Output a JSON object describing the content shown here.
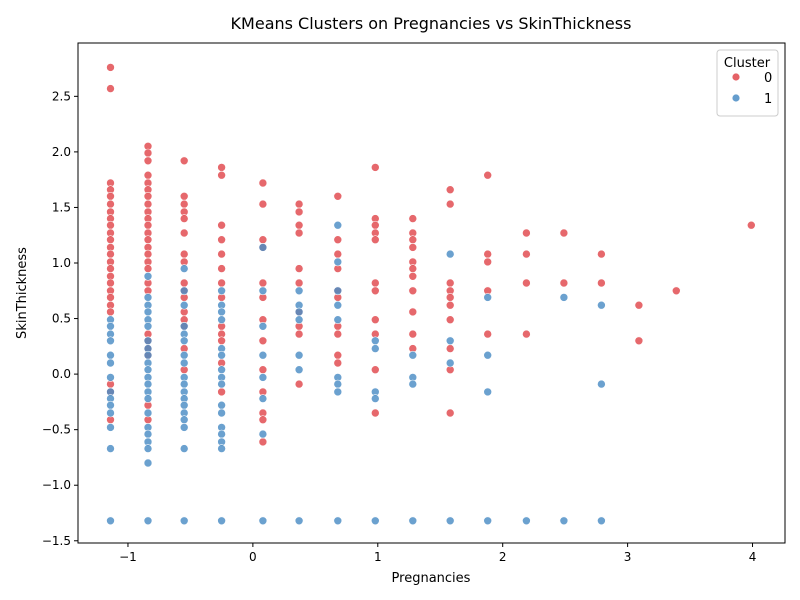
{
  "chart_data": {
    "type": "scatter",
    "title": "KMeans Clusters on Pregnancies vs SkinThickness",
    "xlabel": "Pregnancies",
    "ylabel": "SkinThickness",
    "xlim": [
      -1.4,
      4.26
    ],
    "ylim": [
      -1.52,
      2.98
    ],
    "xticks": [
      -1,
      0,
      1,
      2,
      3,
      4
    ],
    "yticks": [
      -1.5,
      -1.0,
      -0.5,
      0.0,
      0.5,
      1.0,
      1.5,
      2.0,
      2.5
    ],
    "xtick_labels": [
      "−1",
      "0",
      "1",
      "2",
      "3",
      "4"
    ],
    "ytick_labels": [
      "−1.5",
      "−1.0",
      "−0.5",
      "0.0",
      "0.5",
      "1.0",
      "1.5",
      "2.0",
      "2.5"
    ],
    "legend": {
      "title": "Cluster",
      "placement": "top-right",
      "entries": [
        "0",
        "1"
      ]
    },
    "series": [
      {
        "name": "0",
        "color": "#e0474c",
        "points": [
          [
            -1.14,
            2.76
          ],
          [
            -1.14,
            2.57
          ],
          [
            -1.14,
            1.72
          ],
          [
            -1.14,
            1.66
          ],
          [
            -1.14,
            1.6
          ],
          [
            -1.14,
            1.53
          ],
          [
            -1.14,
            1.46
          ],
          [
            -1.14,
            1.4
          ],
          [
            -1.14,
            1.34
          ],
          [
            -1.14,
            1.27
          ],
          [
            -1.14,
            1.21
          ],
          [
            -1.14,
            1.14
          ],
          [
            -1.14,
            1.08
          ],
          [
            -1.14,
            1.01
          ],
          [
            -1.14,
            0.95
          ],
          [
            -1.14,
            0.88
          ],
          [
            -1.14,
            0.82
          ],
          [
            -1.14,
            0.75
          ],
          [
            -1.14,
            0.69
          ],
          [
            -1.14,
            0.62
          ],
          [
            -1.14,
            0.56
          ],
          [
            -1.14,
            -0.09
          ],
          [
            -1.14,
            -0.16
          ],
          [
            -1.14,
            -0.41
          ],
          [
            -0.84,
            2.05
          ],
          [
            -0.84,
            1.99
          ],
          [
            -0.84,
            1.92
          ],
          [
            -0.84,
            1.79
          ],
          [
            -0.84,
            1.72
          ],
          [
            -0.84,
            1.66
          ],
          [
            -0.84,
            1.6
          ],
          [
            -0.84,
            1.53
          ],
          [
            -0.84,
            1.46
          ],
          [
            -0.84,
            1.4
          ],
          [
            -0.84,
            1.34
          ],
          [
            -0.84,
            1.27
          ],
          [
            -0.84,
            1.21
          ],
          [
            -0.84,
            1.14
          ],
          [
            -0.84,
            1.08
          ],
          [
            -0.84,
            1.01
          ],
          [
            -0.84,
            0.95
          ],
          [
            -0.84,
            0.82
          ],
          [
            -0.84,
            0.75
          ],
          [
            -0.84,
            0.36
          ],
          [
            -0.84,
            0.3
          ],
          [
            -0.84,
            0.23
          ],
          [
            -0.84,
            0.17
          ],
          [
            -0.84,
            -0.28
          ],
          [
            -0.84,
            -0.41
          ],
          [
            -0.55,
            1.92
          ],
          [
            -0.55,
            1.6
          ],
          [
            -0.55,
            1.53
          ],
          [
            -0.55,
            1.46
          ],
          [
            -0.55,
            1.4
          ],
          [
            -0.55,
            1.27
          ],
          [
            -0.55,
            1.08
          ],
          [
            -0.55,
            1.01
          ],
          [
            -0.55,
            0.82
          ],
          [
            -0.55,
            0.75
          ],
          [
            -0.55,
            0.69
          ],
          [
            -0.55,
            0.56
          ],
          [
            -0.55,
            0.49
          ],
          [
            -0.55,
            0.43
          ],
          [
            -0.55,
            0.23
          ],
          [
            -0.55,
            0.04
          ],
          [
            -0.25,
            1.86
          ],
          [
            -0.25,
            1.79
          ],
          [
            -0.25,
            1.34
          ],
          [
            -0.25,
            1.21
          ],
          [
            -0.25,
            1.08
          ],
          [
            -0.25,
            0.95
          ],
          [
            -0.25,
            0.82
          ],
          [
            -0.25,
            0.69
          ],
          [
            -0.25,
            0.43
          ],
          [
            -0.25,
            0.36
          ],
          [
            -0.25,
            0.3
          ],
          [
            -0.25,
            0.1
          ],
          [
            -0.25,
            -0.16
          ],
          [
            0.08,
            1.72
          ],
          [
            0.08,
            1.53
          ],
          [
            0.08,
            1.21
          ],
          [
            0.08,
            1.14
          ],
          [
            0.08,
            0.82
          ],
          [
            0.08,
            0.69
          ],
          [
            0.08,
            0.49
          ],
          [
            0.08,
            0.3
          ],
          [
            0.08,
            0.04
          ],
          [
            0.08,
            -0.16
          ],
          [
            0.08,
            -0.35
          ],
          [
            0.08,
            -0.41
          ],
          [
            0.08,
            -0.61
          ],
          [
            0.37,
            1.53
          ],
          [
            0.37,
            1.46
          ],
          [
            0.37,
            1.34
          ],
          [
            0.37,
            1.27
          ],
          [
            0.37,
            0.95
          ],
          [
            0.37,
            0.82
          ],
          [
            0.37,
            0.56
          ],
          [
            0.37,
            0.43
          ],
          [
            0.37,
            0.36
          ],
          [
            0.37,
            -0.09
          ],
          [
            0.68,
            1.6
          ],
          [
            0.68,
            1.21
          ],
          [
            0.68,
            1.08
          ],
          [
            0.68,
            0.95
          ],
          [
            0.68,
            0.75
          ],
          [
            0.68,
            0.69
          ],
          [
            0.68,
            0.43
          ],
          [
            0.68,
            0.36
          ],
          [
            0.68,
            0.17
          ],
          [
            0.68,
            0.1
          ],
          [
            0.98,
            1.86
          ],
          [
            0.98,
            1.4
          ],
          [
            0.98,
            1.34
          ],
          [
            0.98,
            1.27
          ],
          [
            0.98,
            1.21
          ],
          [
            0.98,
            0.82
          ],
          [
            0.98,
            0.75
          ],
          [
            0.98,
            0.49
          ],
          [
            0.98,
            0.36
          ],
          [
            0.98,
            0.04
          ],
          [
            0.98,
            -0.35
          ],
          [
            1.28,
            1.4
          ],
          [
            1.28,
            1.27
          ],
          [
            1.28,
            1.21
          ],
          [
            1.28,
            1.14
          ],
          [
            1.28,
            1.01
          ],
          [
            1.28,
            0.95
          ],
          [
            1.28,
            0.88
          ],
          [
            1.28,
            0.75
          ],
          [
            1.28,
            0.56
          ],
          [
            1.28,
            0.36
          ],
          [
            1.28,
            0.23
          ],
          [
            1.58,
            1.66
          ],
          [
            1.58,
            1.53
          ],
          [
            1.58,
            0.82
          ],
          [
            1.58,
            0.75
          ],
          [
            1.58,
            0.69
          ],
          [
            1.58,
            0.62
          ],
          [
            1.58,
            0.49
          ],
          [
            1.58,
            0.23
          ],
          [
            1.58,
            0.04
          ],
          [
            1.58,
            -0.35
          ],
          [
            1.88,
            1.79
          ],
          [
            1.88,
            1.08
          ],
          [
            1.88,
            1.01
          ],
          [
            1.88,
            0.75
          ],
          [
            1.88,
            0.36
          ],
          [
            2.19,
            1.27
          ],
          [
            2.19,
            1.08
          ],
          [
            2.19,
            0.82
          ],
          [
            2.19,
            0.36
          ],
          [
            2.49,
            1.27
          ],
          [
            2.49,
            0.82
          ],
          [
            2.79,
            1.08
          ],
          [
            2.79,
            0.82
          ],
          [
            3.09,
            0.62
          ],
          [
            3.09,
            0.3
          ],
          [
            3.39,
            0.75
          ],
          [
            3.99,
            1.34
          ]
        ]
      },
      {
        "name": "1",
        "color": "#4a8cc4",
        "points": [
          [
            -1.14,
            0.49
          ],
          [
            -1.14,
            0.43
          ],
          [
            -1.14,
            0.36
          ],
          [
            -1.14,
            0.3
          ],
          [
            -1.14,
            0.17
          ],
          [
            -1.14,
            0.1
          ],
          [
            -1.14,
            -0.03
          ],
          [
            -1.14,
            -0.16
          ],
          [
            -1.14,
            -0.22
          ],
          [
            -1.14,
            -0.28
          ],
          [
            -1.14,
            -0.35
          ],
          [
            -1.14,
            -0.48
          ],
          [
            -1.14,
            -0.67
          ],
          [
            -1.14,
            -1.32
          ],
          [
            -0.84,
            0.88
          ],
          [
            -0.84,
            0.69
          ],
          [
            -0.84,
            0.62
          ],
          [
            -0.84,
            0.56
          ],
          [
            -0.84,
            0.49
          ],
          [
            -0.84,
            0.43
          ],
          [
            -0.84,
            0.3
          ],
          [
            -0.84,
            0.23
          ],
          [
            -0.84,
            0.17
          ],
          [
            -0.84,
            0.1
          ],
          [
            -0.84,
            0.04
          ],
          [
            -0.84,
            -0.03
          ],
          [
            -0.84,
            -0.09
          ],
          [
            -0.84,
            -0.16
          ],
          [
            -0.84,
            -0.22
          ],
          [
            -0.84,
            -0.35
          ],
          [
            -0.84,
            -0.48
          ],
          [
            -0.84,
            -0.54
          ],
          [
            -0.84,
            -0.61
          ],
          [
            -0.84,
            -0.67
          ],
          [
            -0.84,
            -0.8
          ],
          [
            -0.84,
            -1.32
          ],
          [
            -0.55,
            0.95
          ],
          [
            -0.55,
            0.75
          ],
          [
            -0.55,
            0.62
          ],
          [
            -0.55,
            0.43
          ],
          [
            -0.55,
            0.36
          ],
          [
            -0.55,
            0.3
          ],
          [
            -0.55,
            0.17
          ],
          [
            -0.55,
            0.1
          ],
          [
            -0.55,
            -0.03
          ],
          [
            -0.55,
            -0.09
          ],
          [
            -0.55,
            -0.16
          ],
          [
            -0.55,
            -0.22
          ],
          [
            -0.55,
            -0.28
          ],
          [
            -0.55,
            -0.35
          ],
          [
            -0.55,
            -0.41
          ],
          [
            -0.55,
            -0.48
          ],
          [
            -0.55,
            -0.67
          ],
          [
            -0.55,
            -1.32
          ],
          [
            -0.25,
            0.75
          ],
          [
            -0.25,
            0.62
          ],
          [
            -0.25,
            0.56
          ],
          [
            -0.25,
            0.49
          ],
          [
            -0.25,
            0.23
          ],
          [
            -0.25,
            0.17
          ],
          [
            -0.25,
            0.04
          ],
          [
            -0.25,
            -0.03
          ],
          [
            -0.25,
            -0.09
          ],
          [
            -0.25,
            -0.28
          ],
          [
            -0.25,
            -0.35
          ],
          [
            -0.25,
            -0.48
          ],
          [
            -0.25,
            -0.54
          ],
          [
            -0.25,
            -0.61
          ],
          [
            -0.25,
            -0.67
          ],
          [
            -0.25,
            -1.32
          ],
          [
            0.08,
            1.14
          ],
          [
            0.08,
            0.75
          ],
          [
            0.08,
            0.43
          ],
          [
            0.08,
            0.17
          ],
          [
            0.08,
            -0.03
          ],
          [
            0.08,
            -0.22
          ],
          [
            0.08,
            -0.54
          ],
          [
            0.08,
            -1.32
          ],
          [
            0.37,
            0.75
          ],
          [
            0.37,
            0.62
          ],
          [
            0.37,
            0.56
          ],
          [
            0.37,
            0.49
          ],
          [
            0.37,
            0.17
          ],
          [
            0.37,
            0.04
          ],
          [
            0.37,
            -1.32
          ],
          [
            0.68,
            1.34
          ],
          [
            0.68,
            1.01
          ],
          [
            0.68,
            0.75
          ],
          [
            0.68,
            0.62
          ],
          [
            0.68,
            0.49
          ],
          [
            0.68,
            -0.03
          ],
          [
            0.68,
            -0.09
          ],
          [
            0.68,
            -0.16
          ],
          [
            0.68,
            -1.32
          ],
          [
            0.98,
            0.3
          ],
          [
            0.98,
            0.23
          ],
          [
            0.98,
            -0.16
          ],
          [
            0.98,
            -0.22
          ],
          [
            0.98,
            -1.32
          ],
          [
            1.28,
            0.17
          ],
          [
            1.28,
            -0.03
          ],
          [
            1.28,
            -0.09
          ],
          [
            1.28,
            -1.32
          ],
          [
            1.58,
            1.08
          ],
          [
            1.58,
            0.3
          ],
          [
            1.58,
            0.1
          ],
          [
            1.58,
            -1.32
          ],
          [
            1.88,
            0.69
          ],
          [
            1.88,
            0.17
          ],
          [
            1.88,
            -0.16
          ],
          [
            1.88,
            -1.32
          ],
          [
            2.19,
            -1.32
          ],
          [
            2.49,
            0.69
          ],
          [
            2.49,
            -1.32
          ],
          [
            2.79,
            0.62
          ],
          [
            2.79,
            -0.09
          ],
          [
            2.79,
            -1.32
          ]
        ]
      }
    ]
  }
}
